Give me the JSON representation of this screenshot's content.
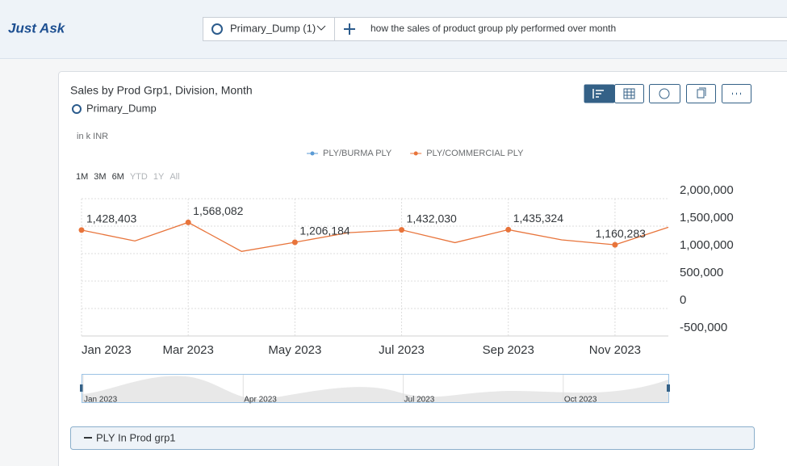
{
  "header": {
    "title": "Just Ask",
    "source": "Primary_Dump (1)",
    "query": "how the sales of product group ply performed over month"
  },
  "card": {
    "subtitle": "Primary_Dump",
    "unit": "in k INR",
    "timeframes": [
      "1M",
      "3M",
      "6M",
      "YTD",
      "1Y",
      "All"
    ],
    "navigator_labels": [
      "Jan 2023",
      "Apr 2023",
      "Jul 2023",
      "Oct 2023"
    ],
    "footer": "PLY In Prod grp1"
  },
  "chart_data": {
    "type": "line",
    "title": "Sales by Prod Grp1, Division, Month",
    "categories": [
      "Jan 2023",
      null,
      "Mar 2023",
      null,
      "May 2023",
      null,
      "Jul 2023",
      null,
      "Sep 2023",
      null,
      "Nov 2023",
      null
    ],
    "series": [
      {
        "name": "PLY/BURMA PLY",
        "color": "#5b9bd5",
        "values": [
          null,
          null,
          null,
          null,
          null,
          null,
          null,
          null,
          null,
          null,
          null,
          null
        ]
      },
      {
        "name": "PLY/COMMERCIAL PLY",
        "color": "#e8743b",
        "values": [
          1428403,
          1230000,
          1568082,
          1040000,
          1206184,
          1380000,
          1432030,
          1200000,
          1435324,
          1250000,
          1160283,
          1480000
        ],
        "value_labels": [
          "1,428,403",
          null,
          "1,568,082",
          null,
          "1,206,184",
          null,
          "1,432,030",
          null,
          "1,435,324",
          null,
          "1,160,283",
          null
        ]
      }
    ],
    "ylim": [
      -500000,
      2000000
    ],
    "yticks": [
      {
        "value": -500000,
        "label": "-500,000"
      },
      0,
      {
        "value": 500000,
        "label": "500,000"
      },
      {
        "value": 1000000,
        "label": "1,000,000"
      },
      {
        "value": 1500000,
        "label": "1,500,000"
      },
      {
        "value": 2000000,
        "label": "2,000,000"
      }
    ],
    "grid": true,
    "legend": "top"
  }
}
